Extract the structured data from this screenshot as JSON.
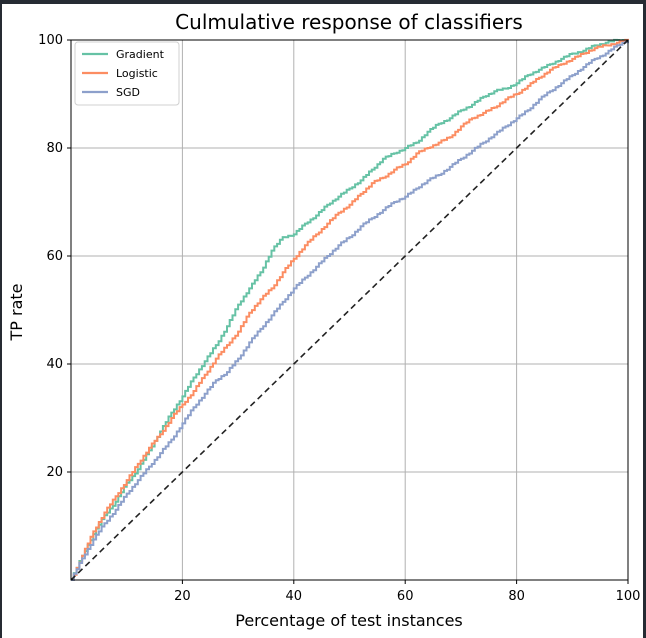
{
  "chart_data": {
    "type": "line",
    "title": "Culmulative response of classifiers",
    "xlabel": "Percentage of test instances",
    "ylabel": "TP rate",
    "xlim": [
      0,
      100
    ],
    "ylim": [
      0,
      100
    ],
    "xticks": [
      20,
      40,
      60,
      80,
      100
    ],
    "yticks": [
      20,
      40,
      60,
      80,
      100
    ],
    "grid": true,
    "legend": "top-left",
    "x": [
      0,
      2,
      4,
      6,
      8,
      10,
      12,
      14,
      16,
      18,
      20,
      22,
      24,
      26,
      28,
      30,
      32,
      34,
      36,
      38,
      40,
      42,
      44,
      46,
      48,
      50,
      52,
      54,
      56,
      58,
      60,
      62,
      64,
      66,
      68,
      70,
      72,
      74,
      76,
      78,
      80,
      82,
      84,
      86,
      88,
      90,
      92,
      94,
      96,
      98,
      100
    ],
    "series": [
      {
        "name": "Gradient",
        "color": "#66c2a5",
        "values": [
          0,
          4.5,
          8.5,
          12,
          14.5,
          18,
          20.5,
          24,
          27.5,
          31,
          34,
          37.5,
          40.5,
          43.5,
          47,
          51,
          54,
          57,
          61,
          63.5,
          64,
          66,
          67.5,
          69.5,
          71,
          72.5,
          74,
          76,
          78,
          79,
          80,
          81,
          83,
          84.5,
          85.5,
          87,
          88,
          89.5,
          90.5,
          91,
          92,
          93.5,
          94.5,
          95.5,
          96.5,
          97.5,
          98,
          99,
          99.5,
          100,
          100
        ]
      },
      {
        "name": "Logistic",
        "color": "#fc8d62",
        "values": [
          0,
          4.5,
          9,
          12.5,
          15.5,
          18.5,
          21.5,
          24.5,
          27,
          30,
          32.5,
          35,
          38,
          41,
          43.5,
          46,
          49.5,
          52,
          54,
          57,
          59.5,
          62,
          64,
          66,
          68,
          69.5,
          71.5,
          73.5,
          74.5,
          76,
          77,
          79,
          80,
          81,
          82,
          84,
          85.5,
          86.5,
          87.5,
          89,
          90,
          91.5,
          93,
          94.5,
          95.5,
          96.5,
          97.5,
          98.5,
          99,
          99.5,
          100
        ]
      },
      {
        "name": "SGD",
        "color": "#8da0cb",
        "values": [
          0,
          4,
          7.5,
          10.5,
          13,
          16,
          18.5,
          21,
          23.5,
          26,
          29,
          32,
          34.5,
          37,
          38.5,
          41,
          44,
          46.5,
          49,
          51.5,
          54,
          56,
          58,
          60,
          62,
          63.5,
          65.5,
          67,
          68.5,
          70,
          71,
          72.5,
          74,
          75,
          76.5,
          78,
          79.5,
          81,
          82.5,
          84,
          85.5,
          87,
          89,
          90.5,
          92,
          93.5,
          95,
          96.5,
          97.5,
          99,
          100
        ]
      },
      {
        "name": "",
        "color": "#222222",
        "dashed": true,
        "values": [
          0,
          2,
          4,
          6,
          8,
          10,
          12,
          14,
          16,
          18,
          20,
          22,
          24,
          26,
          28,
          30,
          32,
          34,
          36,
          38,
          40,
          42,
          44,
          46,
          48,
          50,
          52,
          54,
          56,
          58,
          60,
          62,
          64,
          66,
          68,
          70,
          72,
          74,
          76,
          78,
          80,
          82,
          84,
          86,
          88,
          90,
          92,
          94,
          96,
          98,
          100
        ]
      }
    ]
  }
}
